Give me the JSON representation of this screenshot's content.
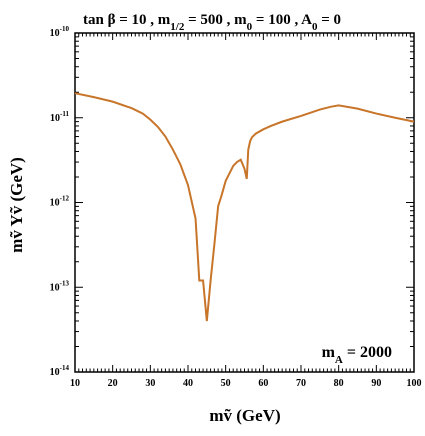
{
  "chart_data": {
    "type": "line",
    "title": "tan β = 10 ,  m1/2 = 500 ,  m0 = 100 , A0 = 0",
    "title_parts": [
      {
        "text": "tan β = 10 ,  m"
      },
      {
        "text": "1/2",
        "sub": true
      },
      {
        "text": " = 500 ,  m"
      },
      {
        "text": "0",
        "sub": true
      },
      {
        "text": " = 100 , A"
      },
      {
        "text": "0",
        "sub": true
      },
      {
        "text": " = 0"
      }
    ],
    "xlabel": "mṽ (GeV)",
    "ylabel": "mṽ Yṽ (GeV)",
    "annotation": "mA = 2000",
    "xlim": [
      10,
      100
    ],
    "ylim": [
      1e-14,
      1e-10
    ],
    "yscale": "log",
    "grid": false,
    "x_ticks": [
      "10",
      "20",
      "30",
      "40",
      "50",
      "60",
      "70",
      "80",
      "90",
      "100"
    ],
    "y_ticks": [
      {
        "base": "10",
        "exp": "-14"
      },
      {
        "base": "10",
        "exp": "-13"
      },
      {
        "base": "10",
        "exp": "-12"
      },
      {
        "base": "10",
        "exp": "-11"
      },
      {
        "base": "10",
        "exp": "-10"
      }
    ],
    "color": "#c8752a",
    "series": [
      {
        "x": [
          10,
          15,
          20,
          25,
          28,
          30,
          32,
          34,
          36,
          38,
          40,
          42,
          43,
          44,
          45,
          46,
          47,
          48,
          49,
          50,
          51,
          52,
          53,
          54,
          55,
          55.6,
          56,
          56.5,
          57,
          58,
          60,
          62,
          65,
          70,
          75,
          78,
          80,
          85,
          90,
          95,
          100
        ],
        "y": [
          1.95e-11,
          1.75e-11,
          1.55e-11,
          1.3e-11,
          1.12e-11,
          9.5e-12,
          7.8e-12,
          6e-12,
          4.2e-12,
          2.8e-12,
          1.6e-12,
          6.5e-13,
          1.2e-13,
          1.2e-13,
          4e-14,
          1.2e-13,
          3.2e-13,
          9e-13,
          1.25e-12,
          1.8e-12,
          2.2e-12,
          2.7e-12,
          3e-12,
          3.2e-12,
          2.5e-12,
          1.9e-12,
          4.2e-12,
          5.3e-12,
          5.9e-12,
          6.5e-12,
          7.3e-12,
          8e-12,
          9e-12,
          1.05e-11,
          1.25e-11,
          1.35e-11,
          1.4e-11,
          1.28e-11,
          1.12e-11,
          1e-11,
          9e-12
        ]
      }
    ]
  }
}
